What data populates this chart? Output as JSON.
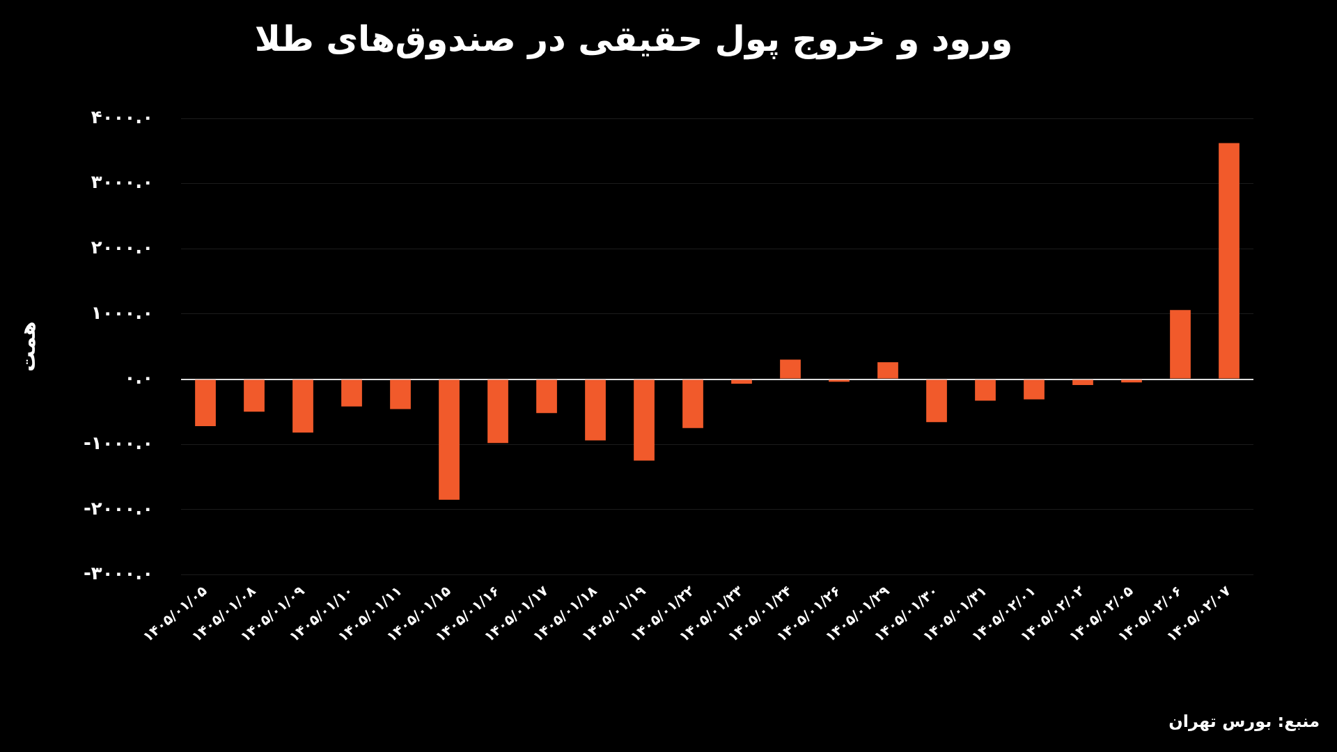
{
  "chart_data": {
    "type": "bar",
    "title": "ورود و خروج پول حقیقی در صندوق‌های طلا",
    "ylabel": "همت",
    "categories": [
      "۱۴۰۵/۰۱/۰۵",
      "۱۴۰۵/۰۱/۰۸",
      "۱۴۰۵/۰۱/۰۹",
      "۱۴۰۵/۰۱/۱۰",
      "۱۴۰۵/۰۱/۱۱",
      "۱۴۰۵/۰۱/۱۵",
      "۱۴۰۵/۰۱/۱۶",
      "۱۴۰۵/۰۱/۱۷",
      "۱۴۰۵/۰۱/۱۸",
      "۱۴۰۵/۰۱/۱۹",
      "۱۴۰۵/۰۱/۲۲",
      "۱۴۰۵/۰۱/۲۳",
      "۱۴۰۵/۰۱/۲۴",
      "۱۴۰۵/۰۱/۲۶",
      "۱۴۰۵/۰۱/۲۹",
      "۱۴۰۵/۰۱/۳۰",
      "۱۴۰۵/۰۱/۳۱",
      "۱۴۰۵/۰۲/۰۱",
      "۱۴۰۵/۰۲/۰۲",
      "۱۴۰۵/۰۲/۰۵",
      "۱۴۰۵/۰۲/۰۶",
      "۱۴۰۵/۰۲/۰۷"
    ],
    "values": [
      -720,
      -500,
      -820,
      -420,
      -460,
      -1850,
      -980,
      -520,
      -940,
      -1250,
      -750,
      -70,
      300,
      -40,
      260,
      -660,
      -330,
      -310,
      -90,
      -50,
      1060,
      3620
    ],
    "color": "#f15a2b",
    "ylim": [
      -3000,
      4000
    ],
    "yticks": [
      {
        "value": -3000,
        "label": "-۳۰۰۰.۰"
      },
      {
        "value": -2000,
        "label": "-۲۰۰۰.۰"
      },
      {
        "value": -1000,
        "label": "-۱۰۰۰.۰"
      },
      {
        "value": 0,
        "label": "۰.۰"
      },
      {
        "value": 1000,
        "label": "۱۰۰۰.۰"
      },
      {
        "value": 2000,
        "label": "۲۰۰۰.۰"
      },
      {
        "value": 3000,
        "label": "۳۰۰۰.۰"
      },
      {
        "value": 4000,
        "label": "۴۰۰۰.۰"
      }
    ],
    "grid": true,
    "annotations": [
      "منبع: بورس تهران"
    ]
  }
}
